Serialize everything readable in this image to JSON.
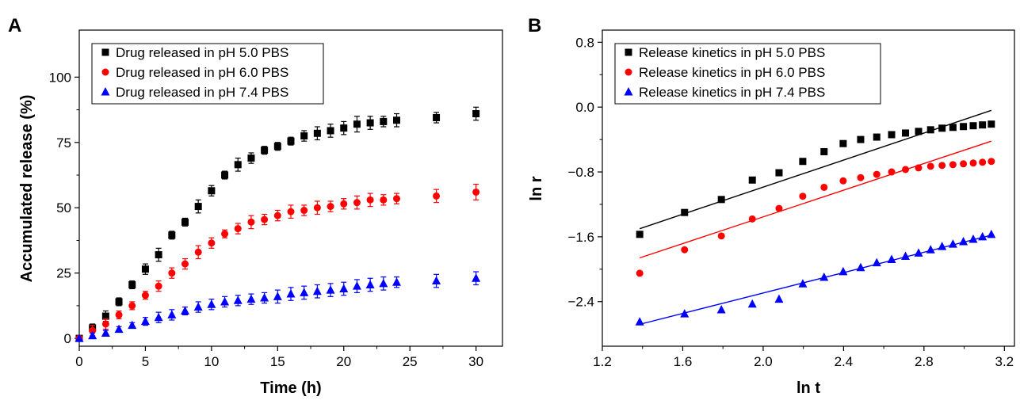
{
  "chart_data": [
    {
      "panel": "A",
      "type": "scatter",
      "title": "",
      "xlabel": "Time (h)",
      "ylabel": "Accumulated release (%)",
      "xlim": [
        0,
        32
      ],
      "ylim": [
        -3,
        118
      ],
      "xticks": [
        0,
        5,
        10,
        15,
        20,
        25,
        30
      ],
      "yticks": [
        0,
        25,
        50,
        75,
        100
      ],
      "legend_position": "top-left",
      "error_bars": true,
      "series": [
        {
          "name": "Drug released in pH 5.0 PBS",
          "color": "#000000",
          "marker": "square",
          "x": [
            0,
            1,
            2,
            3,
            4,
            5,
            6,
            7,
            8,
            9,
            10,
            11,
            12,
            13,
            14,
            15,
            16,
            17,
            18,
            19,
            20,
            21,
            22,
            23,
            24,
            27,
            30
          ],
          "y": [
            0,
            4,
            8.5,
            14,
            20.5,
            26.5,
            32,
            39.5,
            44.5,
            50.5,
            56.5,
            62.5,
            66.5,
            69,
            72,
            73.5,
            75.5,
            77.5,
            78.5,
            79.5,
            80.5,
            82,
            82.5,
            83,
            83.5,
            84.5,
            86
          ],
          "err": [
            0,
            1.5,
            2,
            1.5,
            1.5,
            2,
            2.5,
            1.5,
            1.5,
            2.5,
            2,
            1.5,
            2.5,
            2,
            1.5,
            1.5,
            1.5,
            2,
            2.5,
            2.5,
            2.5,
            3,
            2.5,
            2,
            2.5,
            2,
            2.5
          ]
        },
        {
          "name": "Drug released in pH 6.0 PBS",
          "color": "#ff0000",
          "marker": "circle",
          "x": [
            0,
            1,
            2,
            3,
            4,
            5,
            6,
            7,
            8,
            9,
            10,
            11,
            12,
            13,
            14,
            15,
            16,
            17,
            18,
            19,
            20,
            21,
            22,
            23,
            24,
            27,
            30
          ],
          "y": [
            0,
            3,
            5.5,
            9,
            12.5,
            16.5,
            20,
            25,
            28.5,
            33,
            36.5,
            40,
            42,
            44.5,
            45.5,
            47,
            48.5,
            49,
            50,
            50.5,
            51.5,
            52,
            53,
            53,
            53.5,
            54.5,
            56
          ],
          "err": [
            0,
            2,
            2,
            1.5,
            1.5,
            1.5,
            2,
            2,
            2,
            2.5,
            2,
            1.5,
            2,
            2.5,
            2,
            2,
            2.5,
            2,
            2.5,
            2,
            2,
            2.5,
            2.5,
            2,
            2,
            2.5,
            3
          ]
        },
        {
          "name": "Drug released in pH 7.4 PBS",
          "color": "#0000ff",
          "marker": "triangle",
          "x": [
            0,
            1,
            2,
            3,
            4,
            5,
            6,
            7,
            8,
            9,
            10,
            11,
            12,
            13,
            14,
            15,
            16,
            17,
            18,
            19,
            20,
            21,
            22,
            23,
            24,
            27,
            30
          ],
          "y": [
            0,
            1,
            2,
            3.5,
            5,
            6.5,
            8,
            9,
            10.5,
            12,
            13,
            14,
            14.5,
            15,
            15.5,
            16,
            17,
            17.5,
            18,
            18.5,
            19,
            20,
            20.5,
            21,
            21.5,
            22,
            23
          ],
          "err": [
            0,
            1,
            1,
            1,
            1,
            1.5,
            2,
            2,
            1.5,
            2,
            2,
            2,
            2,
            2,
            2,
            2.5,
            2.5,
            2.5,
            2.5,
            2.5,
            2.5,
            2.5,
            2.5,
            2.5,
            2,
            2.5,
            2.5
          ]
        }
      ]
    },
    {
      "panel": "B",
      "type": "scatter",
      "title": "",
      "xlabel": "ln t",
      "ylabel": "ln r",
      "xlim": [
        1.2,
        3.25
      ],
      "ylim": [
        -2.95,
        0.95
      ],
      "xticks": [
        1.2,
        1.6,
        2.0,
        2.4,
        2.8,
        3.2
      ],
      "xtick_labels": [
        "1.2",
        "1.6",
        "2.0",
        "2.4",
        "2.8",
        "3.2"
      ],
      "yticks": [
        0.8,
        0.0,
        -0.8,
        -1.6,
        -2.4
      ],
      "ytick_labels": [
        "0.8",
        "0.0",
        "−0.8",
        "−1.6",
        "−2.4"
      ],
      "legend_position": "top-left",
      "series": [
        {
          "name": "Release kinetics in pH 5.0 PBS",
          "color": "#000000",
          "marker": "square",
          "x": [
            1.386,
            1.609,
            1.792,
            1.946,
            2.079,
            2.197,
            2.303,
            2.398,
            2.485,
            2.565,
            2.639,
            2.708,
            2.773,
            2.833,
            2.89,
            2.944,
            2.996,
            3.045,
            3.091,
            3.135
          ],
          "y": [
            -1.57,
            -1.3,
            -1.14,
            -0.9,
            -0.81,
            -0.67,
            -0.55,
            -0.45,
            -0.4,
            -0.37,
            -0.34,
            -0.32,
            -0.3,
            -0.28,
            -0.26,
            -0.25,
            -0.24,
            -0.23,
            -0.22,
            -0.21
          ],
          "fit": {
            "x": [
              1.386,
              3.135
            ],
            "y": [
              -1.5,
              -0.04
            ]
          }
        },
        {
          "name": "Release kinetics in pH 6.0 PBS",
          "color": "#ff0000",
          "marker": "circle",
          "x": [
            1.386,
            1.609,
            1.792,
            1.946,
            2.079,
            2.197,
            2.303,
            2.398,
            2.485,
            2.565,
            2.639,
            2.708,
            2.773,
            2.833,
            2.89,
            2.944,
            2.996,
            3.045,
            3.091,
            3.135
          ],
          "y": [
            -2.05,
            -1.76,
            -1.59,
            -1.38,
            -1.25,
            -1.1,
            -0.99,
            -0.91,
            -0.87,
            -0.83,
            -0.8,
            -0.77,
            -0.75,
            -0.73,
            -0.72,
            -0.71,
            -0.7,
            -0.69,
            -0.68,
            -0.67
          ],
          "fit": {
            "x": [
              1.386,
              3.135
            ],
            "y": [
              -1.86,
              -0.42
            ]
          }
        },
        {
          "name": "Release kinetics in pH 7.4 PBS",
          "color": "#0000ff",
          "marker": "triangle",
          "x": [
            1.386,
            1.609,
            1.792,
            1.946,
            2.079,
            2.197,
            2.303,
            2.398,
            2.485,
            2.565,
            2.639,
            2.708,
            2.773,
            2.833,
            2.89,
            2.944,
            2.996,
            3.045,
            3.091,
            3.135
          ],
          "y": [
            -2.65,
            -2.55,
            -2.5,
            -2.43,
            -2.37,
            -2.18,
            -2.1,
            -2.03,
            -1.98,
            -1.92,
            -1.88,
            -1.84,
            -1.8,
            -1.76,
            -1.72,
            -1.69,
            -1.66,
            -1.63,
            -1.6,
            -1.57
          ],
          "fit": {
            "x": [
              1.386,
              3.135
            ],
            "y": [
              -2.68,
              -1.58
            ]
          }
        }
      ]
    }
  ]
}
